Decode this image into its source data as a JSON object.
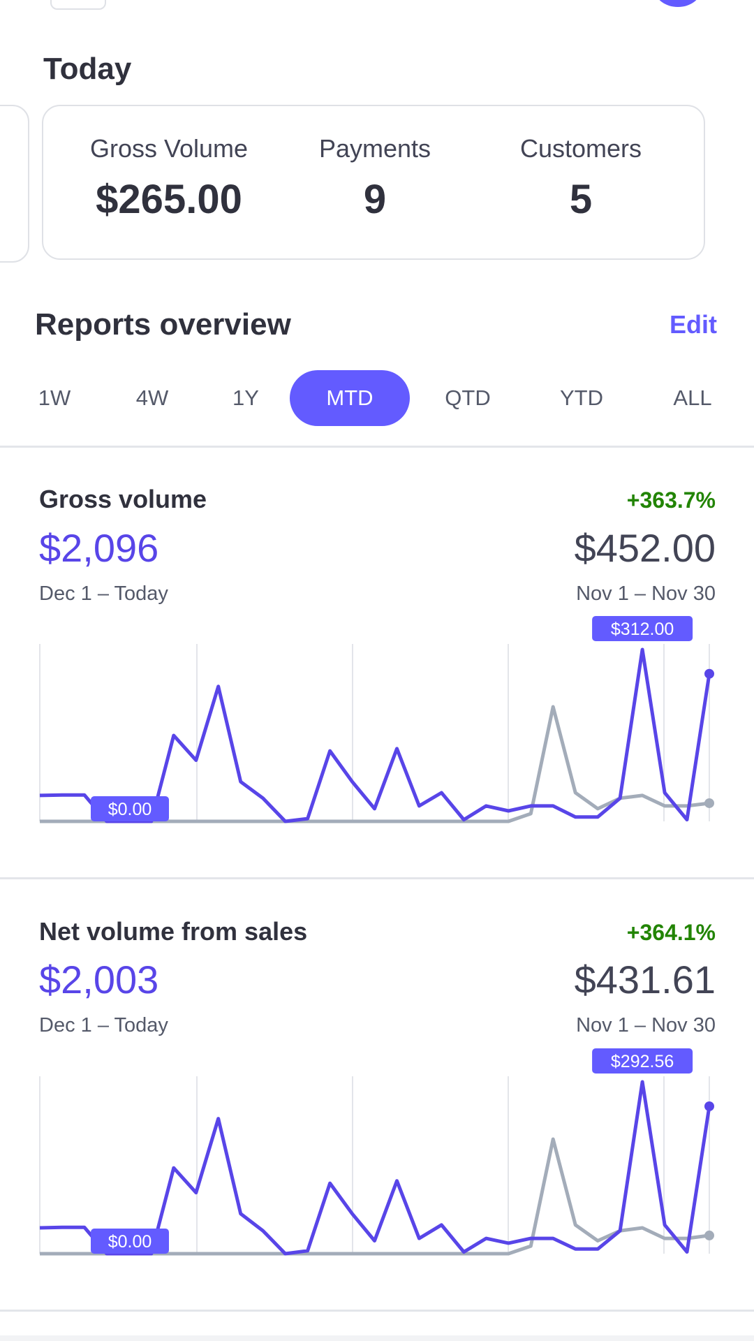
{
  "today": {
    "title": "Today",
    "metrics": [
      {
        "label": "Gross Volume",
        "value": "$265.00"
      },
      {
        "label": "Payments",
        "value": "9"
      },
      {
        "label": "Customers",
        "value": "5"
      }
    ]
  },
  "reports": {
    "title": "Reports overview",
    "edit_label": "Edit",
    "tabs": [
      "1W",
      "4W",
      "1Y",
      "MTD",
      "QTD",
      "YTD",
      "ALL"
    ],
    "active_tab": "MTD"
  },
  "colors": {
    "accent": "#635bff",
    "current_line": "#5845e8",
    "previous_line": "#a3acb9",
    "positive": "#228403"
  },
  "charts": [
    {
      "title": "Gross volume",
      "change": "+363.7%",
      "current_value": "$2,096",
      "previous_value": "$452.00",
      "current_range": "Dec 1 – Today",
      "previous_range": "Nov 1 – Nov 30",
      "tooltip_low": "$0.00",
      "tooltip_high": "$312.00"
    },
    {
      "title": "Net volume from sales",
      "change": "+364.1%",
      "current_value": "$2,003",
      "previous_value": "$431.61",
      "current_range": "Dec 1 – Today",
      "previous_range": "Nov 1 – Nov 30",
      "tooltip_low": "$0.00",
      "tooltip_high": "$292.56"
    }
  ],
  "chart_data": [
    {
      "type": "line",
      "ylim": [
        0,
        312
      ],
      "series": [
        {
          "values": [
            47,
            48,
            48,
            0,
            0,
            0,
            156,
            111,
            245,
            72,
            42,
            0,
            5,
            128,
            72,
            23,
            132,
            28,
            52,
            3,
            28,
            19,
            28,
            28,
            8,
            8,
            42,
            312,
            52,
            3,
            268
          ]
        },
        {
          "values": [
            0,
            0,
            0,
            0,
            0,
            0,
            0,
            0,
            0,
            0,
            0,
            0,
            0,
            0,
            0,
            0,
            0,
            0,
            0,
            0,
            0,
            0,
            14,
            208,
            52,
            23,
            42,
            47,
            28,
            28,
            33
          ]
        }
      ]
    },
    {
      "type": "line",
      "ylim": [
        0,
        292.56
      ],
      "series": [
        {
          "values": [
            44,
            45,
            45,
            0,
            0,
            0,
            146,
            104,
            230,
            68,
            39,
            0,
            5,
            120,
            68,
            22,
            124,
            26,
            49,
            3,
            26,
            18,
            26,
            26,
            8,
            8,
            39,
            292.56,
            49,
            3,
            251
          ]
        },
        {
          "values": [
            0,
            0,
            0,
            0,
            0,
            0,
            0,
            0,
            0,
            0,
            0,
            0,
            0,
            0,
            0,
            0,
            0,
            0,
            0,
            0,
            0,
            0,
            13,
            195,
            49,
            22,
            39,
            44,
            26,
            26,
            31
          ]
        }
      ]
    }
  ]
}
